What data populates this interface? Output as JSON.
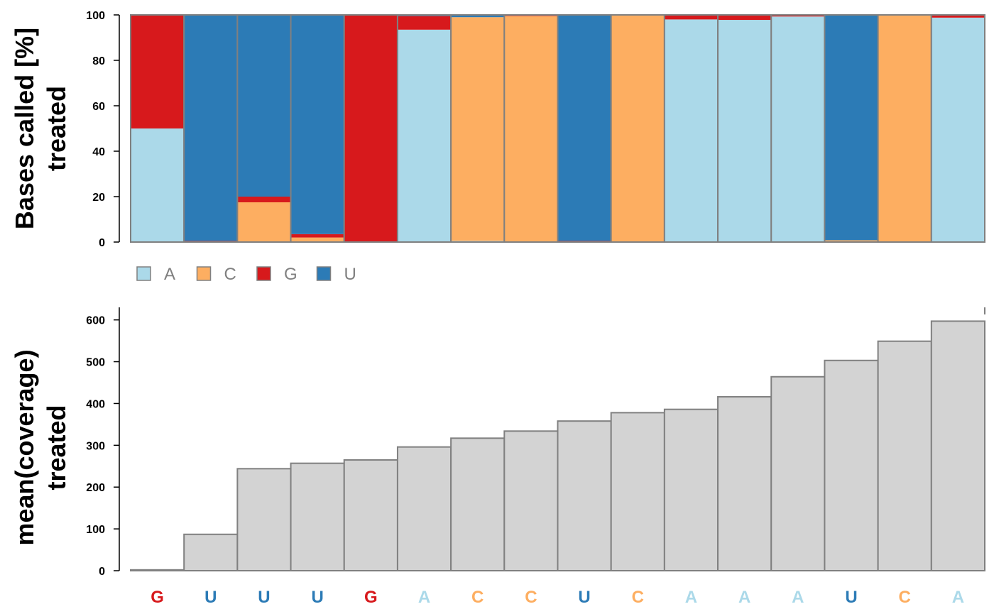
{
  "colors": {
    "A": "#abd9e9",
    "C": "#fdae61",
    "G": "#d7191c",
    "U": "#2c7bb6",
    "coverage": "#d3d3d3",
    "bar_border": "#808080"
  },
  "chart_data": [
    {
      "type": "bar",
      "stacked": true,
      "ylabel_lines": [
        "Bases called [%]",
        "treated"
      ],
      "ylim": [
        0,
        100
      ],
      "yticks": [
        0,
        20,
        40,
        60,
        80,
        100
      ],
      "legend": {
        "placement": "bottom-left",
        "entries": [
          "A",
          "C",
          "G",
          "U"
        ]
      },
      "categories": [
        "G",
        "U",
        "U",
        "U",
        "G",
        "A",
        "C",
        "C",
        "U",
        "C",
        "A",
        "A",
        "A",
        "U",
        "C",
        "A"
      ],
      "series": [
        {
          "name": "A",
          "values": [
            50,
            0,
            0,
            0,
            0,
            93.5,
            0.5,
            0,
            0,
            0,
            98,
            97.8,
            99.3,
            0,
            0,
            98.8
          ]
        },
        {
          "name": "C",
          "values": [
            0,
            0,
            17.5,
            2,
            0,
            0,
            98.5,
            99.5,
            0,
            100,
            0,
            0,
            0,
            0.8,
            99.7,
            0
          ]
        },
        {
          "name": "G",
          "values": [
            50,
            0.5,
            2.5,
            1.5,
            100,
            6,
            0,
            0.5,
            0.5,
            0,
            2,
            2.2,
            0.7,
            0,
            0.3,
            1.2
          ]
        },
        {
          "name": "U",
          "values": [
            0,
            99.5,
            80,
            96.5,
            0,
            0.5,
            1,
            0,
            99.5,
            0,
            0,
            0,
            0,
            99.2,
            0,
            0
          ]
        }
      ]
    },
    {
      "type": "bar",
      "ylabel_lines": [
        "mean(coverage)",
        "treated"
      ],
      "ylim": [
        0,
        630
      ],
      "yticks": [
        0,
        100,
        200,
        300,
        400,
        500,
        600
      ],
      "categories": [
        "G",
        "U",
        "U",
        "U",
        "G",
        "A",
        "C",
        "C",
        "U",
        "C",
        "A",
        "A",
        "A",
        "U",
        "C",
        "A"
      ],
      "values": [
        2,
        87,
        244,
        257,
        265,
        296,
        317,
        334,
        358,
        378,
        386,
        416,
        464,
        503,
        549,
        597
      ]
    }
  ]
}
